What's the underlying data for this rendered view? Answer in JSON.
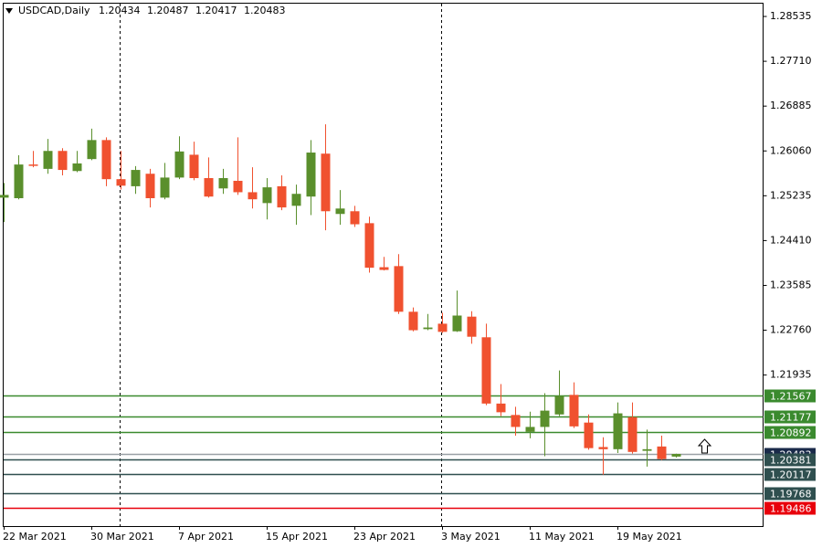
{
  "chart_data": {
    "type": "candlestick",
    "symbol": "USDCAD,Daily",
    "categories": [
      "22 Mar 2021",
      null,
      null,
      null,
      null,
      null,
      "30 Mar 2021",
      null,
      null,
      null,
      null,
      null,
      "7 Apr 2021",
      null,
      null,
      null,
      null,
      null,
      "15 Apr 2021",
      null,
      null,
      null,
      null,
      null,
      "23 Apr 2021",
      null,
      null,
      null,
      null,
      null,
      "3 May 2021",
      null,
      null,
      null,
      null,
      null,
      "11 May 2021",
      null,
      null,
      null,
      null,
      null,
      "19 May 2021",
      null,
      null,
      null,
      null
    ],
    "open": [
      1.252,
      1.2519,
      1.2581,
      1.2573,
      1.2606,
      1.2569,
      1.2591,
      1.2626,
      1.2554,
      1.2541,
      1.2564,
      1.252,
      1.2557,
      1.2599,
      1.2556,
      1.2537,
      1.2551,
      1.253,
      1.251,
      1.2541,
      1.2505,
      1.2522,
      1.2601,
      1.249,
      1.2495,
      1.2473,
      1.2392,
      1.2394,
      1.231,
      1.2278,
      1.2288,
      1.2274,
      1.2301,
      1.2263,
      1.2141,
      1.212,
      1.2089,
      1.2098,
      1.2121,
      1.2157,
      1.2106,
      1.2061,
      1.2057,
      1.2116,
      1.2054,
      1.2062,
      1.20434
    ],
    "high": [
      1.2547,
      1.2598,
      1.2606,
      1.2628,
      1.2611,
      1.2606,
      1.2647,
      1.2631,
      1.2606,
      1.2578,
      1.2573,
      1.2584,
      1.2633,
      1.2623,
      1.2594,
      1.2573,
      1.2631,
      1.2576,
      1.2556,
      1.2561,
      1.2544,
      1.2626,
      1.2655,
      1.2534,
      1.2505,
      1.2485,
      1.2411,
      1.2416,
      1.2318,
      1.2306,
      1.2308,
      1.2349,
      1.2311,
      1.2288,
      1.2177,
      1.2135,
      1.2126,
      1.216,
      1.2202,
      1.218,
      1.2121,
      1.2079,
      1.2143,
      1.2143,
      1.2093,
      1.2082,
      1.20487
    ],
    "low": [
      1.2475,
      1.2517,
      1.2576,
      1.2564,
      1.2561,
      1.2567,
      1.2589,
      1.2541,
      1.2535,
      1.2527,
      1.2502,
      1.2517,
      1.2554,
      1.2552,
      1.252,
      1.2527,
      1.2525,
      1.25,
      1.248,
      1.2497,
      1.247,
      1.2488,
      1.246,
      1.247,
      1.2466,
      1.2382,
      1.2386,
      1.2306,
      1.2274,
      1.2276,
      1.2271,
      1.2273,
      1.2251,
      1.2138,
      1.2118,
      1.2082,
      1.2077,
      1.2044,
      1.2118,
      1.2096,
      1.2056,
      1.201,
      1.205,
      1.2049,
      1.2025,
      1.2037,
      1.20417
    ],
    "close": [
      1.2525,
      1.2581,
      1.2579,
      1.2606,
      1.2571,
      1.2583,
      1.2626,
      1.2554,
      1.2542,
      1.2571,
      1.2519,
      1.2557,
      1.2605,
      1.2556,
      1.2522,
      1.2556,
      1.253,
      1.2517,
      1.2539,
      1.2502,
      1.2527,
      1.2603,
      1.2495,
      1.25,
      1.2471,
      1.2391,
      1.2387,
      1.231,
      1.2276,
      1.2281,
      1.2273,
      1.2303,
      1.2264,
      1.2141,
      1.2125,
      1.2098,
      1.2098,
      1.2128,
      1.2155,
      1.2099,
      1.2059,
      1.2057,
      1.2123,
      1.2052,
      1.2057,
      1.2039,
      1.20483
    ],
    "up_color": "#5a8f2c",
    "down_color": "#f0512f",
    "ylim": [
      1.19155,
      1.28838
    ],
    "yticks": [
      1.28535,
      {
        "value": 1.2771,
        "label": "1.27710"
      },
      1.26885,
      {
        "value": 1.2606,
        "label": "1.26060"
      },
      1.25235,
      {
        "value": 1.2441,
        "label": "1.24410"
      },
      1.23585,
      {
        "value": 1.2276,
        "label": "1.22760"
      },
      1.21935
    ],
    "levels": [
      {
        "value": 1.21567,
        "color": "#3a8a2e"
      },
      {
        "value": 1.21177,
        "color": "#3a8a2e"
      },
      {
        "value": 1.20892,
        "color": "#3a8a2e"
      },
      {
        "value": 1.20381,
        "color": "#2f4f4f"
      },
      {
        "value": 1.20117,
        "color": "#2f4f4f"
      },
      {
        "value": 1.19768,
        "color": "#2f4f4f"
      },
      {
        "value": 1.19486,
        "color": "#e8000b"
      }
    ],
    "current_color": "#1a2a4a"
  }
}
